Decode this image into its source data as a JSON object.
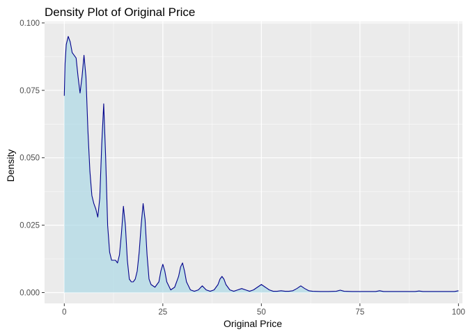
{
  "chart_data": {
    "type": "area",
    "title": "Density Plot of Original Price",
    "xlabel": "Original Price",
    "ylabel": "Density",
    "xlim": [
      -5,
      101
    ],
    "ylim": [
      -0.004,
      0.1005
    ],
    "x_ticks": [
      0,
      25,
      50,
      75,
      100
    ],
    "x_tick_labels": [
      "0",
      "25",
      "50",
      "75",
      "100"
    ],
    "y_ticks": [
      0,
      0.025,
      0.05,
      0.075,
      0.1
    ],
    "y_tick_labels": [
      "0.000",
      "0.025",
      "0.050",
      "0.075",
      "0.100"
    ],
    "grid": true,
    "legend": "none",
    "colors": {
      "panel": "#ebebeb",
      "grid_major": "#ffffff",
      "fill": "#add8e6",
      "line": "#00008b",
      "tick_text": "#4d4d4d"
    },
    "series": [
      {
        "x": [
          0,
          0.2,
          0.5,
          1,
          1.5,
          2,
          2.5,
          3,
          3.5,
          4,
          4.5,
          5,
          5.5,
          6,
          6.5,
          7,
          7.5,
          8,
          8.5,
          9,
          9.5,
          10,
          10.5,
          11,
          11.5,
          12,
          12.5,
          13,
          13.5,
          14,
          14.5,
          15,
          15.5,
          16,
          16.5,
          17,
          17.5,
          18,
          18.5,
          19,
          19.5,
          20,
          20.5,
          21,
          21.5,
          22,
          23,
          24,
          24.5,
          25,
          25.5,
          26,
          27,
          28,
          29,
          29.5,
          30,
          30.5,
          31,
          32,
          33,
          34,
          35,
          36,
          37,
          38,
          39,
          39.5,
          40,
          40.5,
          41,
          42,
          43,
          44,
          45,
          46,
          47,
          48,
          49,
          50,
          51,
          52,
          53,
          54,
          55,
          56,
          57,
          58,
          59,
          60,
          61,
          62,
          63,
          65,
          67,
          69,
          70,
          71,
          73,
          75,
          77,
          79,
          80,
          81,
          83,
          85,
          87,
          89,
          90,
          91,
          93,
          95,
          97,
          99,
          100
        ],
        "y": [
          0.073,
          0.085,
          0.092,
          0.095,
          0.093,
          0.089,
          0.088,
          0.087,
          0.08,
          0.074,
          0.08,
          0.088,
          0.08,
          0.06,
          0.045,
          0.036,
          0.033,
          0.031,
          0.028,
          0.035,
          0.055,
          0.07,
          0.05,
          0.025,
          0.015,
          0.012,
          0.012,
          0.012,
          0.011,
          0.014,
          0.022,
          0.032,
          0.025,
          0.012,
          0.005,
          0.004,
          0.004,
          0.005,
          0.008,
          0.015,
          0.025,
          0.033,
          0.027,
          0.014,
          0.005,
          0.003,
          0.002,
          0.004,
          0.008,
          0.0105,
          0.008,
          0.004,
          0.001,
          0.002,
          0.006,
          0.0095,
          0.011,
          0.008,
          0.004,
          0.001,
          0.0005,
          0.001,
          0.0025,
          0.001,
          0.0005,
          0.001,
          0.003,
          0.005,
          0.006,
          0.005,
          0.003,
          0.001,
          0.0005,
          0.001,
          0.0015,
          0.001,
          0.0005,
          0.001,
          0.002,
          0.003,
          0.002,
          0.001,
          0.0005,
          0.0005,
          0.0007,
          0.0005,
          0.0005,
          0.0007,
          0.0015,
          0.0025,
          0.0015,
          0.0007,
          0.0005,
          0.0004,
          0.0004,
          0.0005,
          0.0009,
          0.0005,
          0.0004,
          0.0004,
          0.0004,
          0.0004,
          0.0007,
          0.0004,
          0.0004,
          0.0004,
          0.0004,
          0.0004,
          0.0006,
          0.0004,
          0.0004,
          0.0004,
          0.0004,
          0.0004,
          0.0007
        ]
      }
    ]
  }
}
